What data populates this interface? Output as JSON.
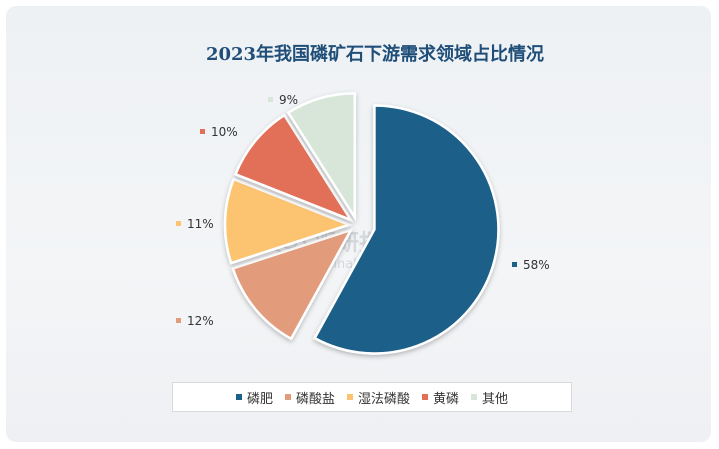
{
  "chart_data": {
    "type": "pie",
    "title": "2023年我国磷矿石下游需求领域占比情况",
    "categories": [
      "磷肥",
      "磷酸盐",
      "湿法磷酸",
      "黄磷",
      "其他"
    ],
    "values": [
      58,
      12,
      11,
      10,
      9
    ],
    "labels": [
      "58%",
      "12%",
      "11%",
      "10%",
      "9%"
    ],
    "colors": [
      "#1a6189",
      "#e29c7c",
      "#fcc471",
      "#e26f58",
      "#d8e6d9"
    ],
    "legend_position": "bottom",
    "exploded": true
  },
  "watermark": {
    "text": "观研报告网",
    "sub": "chinabaogao.com"
  }
}
